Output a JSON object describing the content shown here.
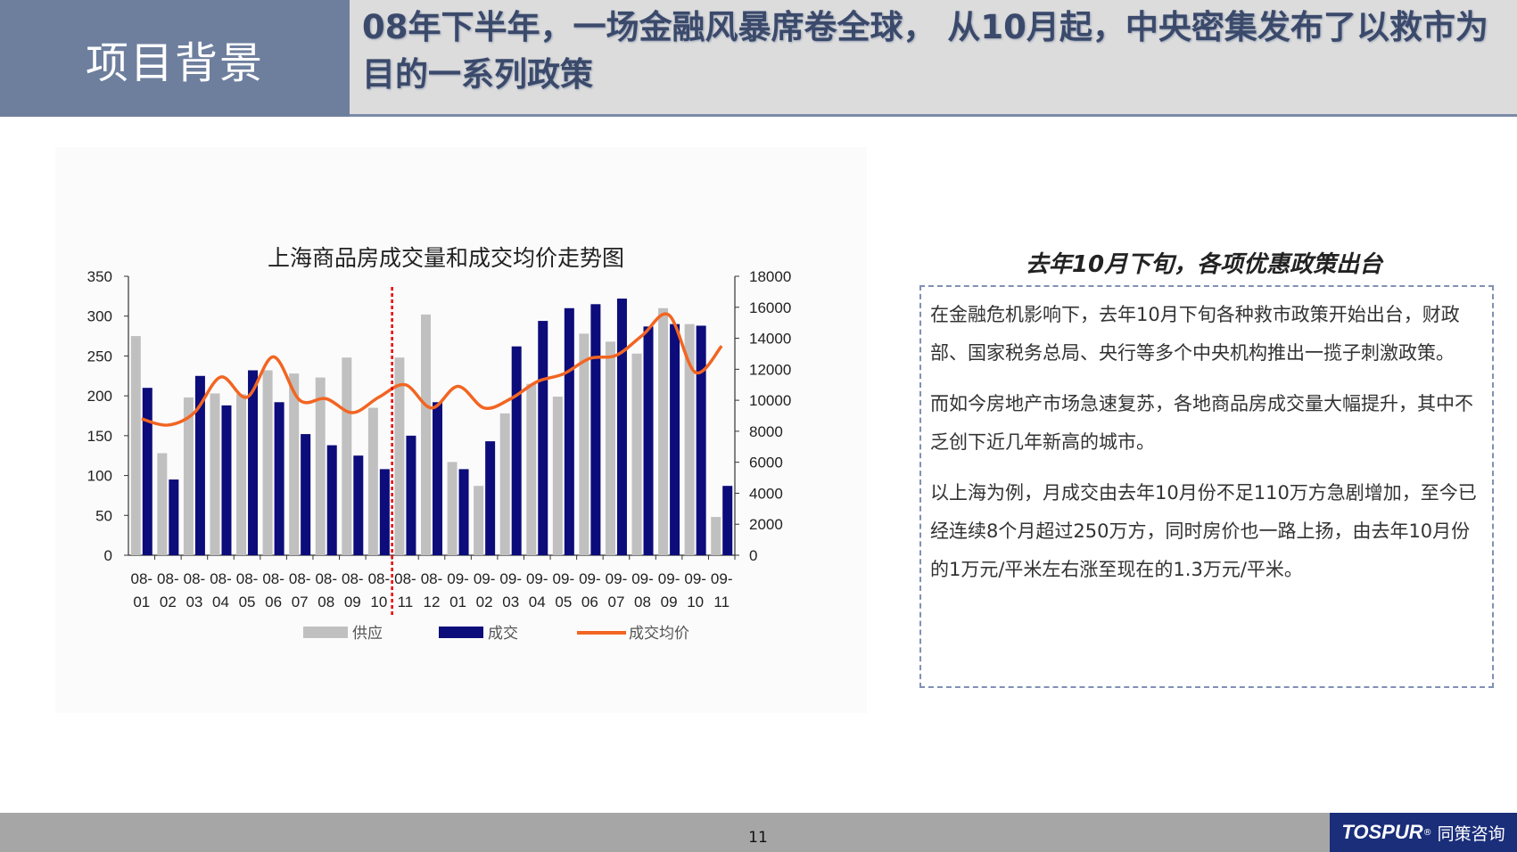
{
  "header": {
    "section_title": "项目背景",
    "headline": "08年下半年，一场金融风暴席卷全球， 从10月起，中央密集发布了以救市为目的一系列政策"
  },
  "chart_data": {
    "type": "bar",
    "title": "上海商品房成交量和成交均价走势图",
    "categories": [
      [
        "08-",
        "01"
      ],
      [
        "08-",
        "02"
      ],
      [
        "08-",
        "03"
      ],
      [
        "08-",
        "04"
      ],
      [
        "08-",
        "05"
      ],
      [
        "08-",
        "06"
      ],
      [
        "08-",
        "07"
      ],
      [
        "08-",
        "08"
      ],
      [
        "08-",
        "09"
      ],
      [
        "08-",
        "10"
      ],
      [
        "08-",
        "11"
      ],
      [
        "08-",
        "12"
      ],
      [
        "09-",
        "01"
      ],
      [
        "09-",
        "02"
      ],
      [
        "09-",
        "03"
      ],
      [
        "09-",
        "04"
      ],
      [
        "09-",
        "05"
      ],
      [
        "09-",
        "06"
      ],
      [
        "09-",
        "07"
      ],
      [
        "09-",
        "08"
      ],
      [
        "09-",
        "09"
      ],
      [
        "09-",
        "10"
      ],
      [
        "09-",
        "11"
      ]
    ],
    "series": [
      {
        "name": "供应",
        "type": "bar",
        "axis": "left",
        "color": "#c0c0c0",
        "values": [
          275,
          128,
          198,
          203,
          202,
          232,
          228,
          223,
          248,
          185,
          248,
          302,
          117,
          87,
          178,
          215,
          199,
          278,
          268,
          253,
          310,
          290,
          48
        ]
      },
      {
        "name": "成交",
        "type": "bar",
        "axis": "left",
        "color": "#0c0c7a",
        "values": [
          210,
          95,
          225,
          188,
          232,
          192,
          152,
          138,
          125,
          108,
          150,
          192,
          108,
          143,
          262,
          294,
          310,
          315,
          322,
          287,
          290,
          288,
          87
        ]
      },
      {
        "name": "成交均价",
        "type": "line",
        "axis": "right",
        "color": "#f26522",
        "values": [
          8800,
          8400,
          9200,
          11500,
          10200,
          12800,
          10000,
          10100,
          9200,
          10200,
          11000,
          9500,
          10900,
          9500,
          10100,
          11200,
          11700,
          12700,
          12900,
          14200,
          15500,
          11800,
          13500
        ]
      }
    ],
    "left_axis": {
      "min": 0,
      "max": 350,
      "ticks": [
        0,
        50,
        100,
        150,
        200,
        250,
        300,
        350
      ]
    },
    "right_axis": {
      "min": 0,
      "max": 18000,
      "ticks": [
        0,
        2000,
        4000,
        6000,
        8000,
        10000,
        12000,
        14000,
        16000,
        18000
      ]
    },
    "marker_after_category": 9,
    "legend_position": "bottom"
  },
  "panel": {
    "title": "去年10月下旬，各项优惠政策出台",
    "paragraphs": [
      "在金融危机影响下，去年10月下旬各种救市政策开始出台，财政部、国家税务总局、央行等多个中央机构推出一揽子刺激政策。",
      "而如今房地产市场急速复苏，各地商品房成交量大幅提升，其中不乏创下近几年新高的城市。",
      "以上海为例，月成交由去年10月份不足110万方急剧增加，至今已经连续8个月超过250万方，同时房价也一路上扬，由去年10月份的1万元/平米左右涨至现在的1.3万元/平米。"
    ]
  },
  "footer": {
    "page_number": "11",
    "logo_latin": "TOSPUR",
    "logo_cn": "同策咨询"
  }
}
